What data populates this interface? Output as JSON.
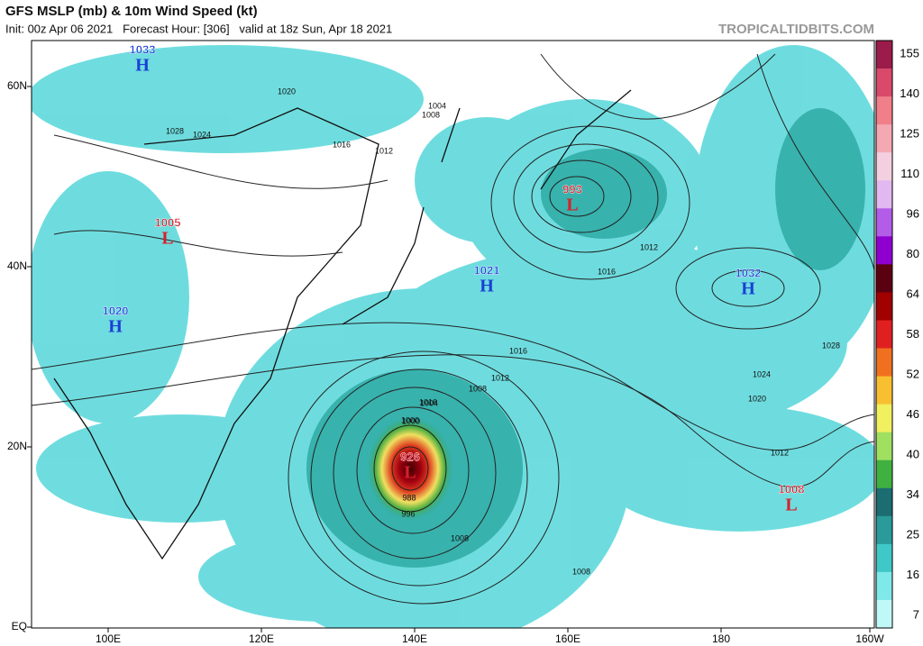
{
  "header": {
    "title": "GFS MSLP (mb) & 10m Wind Speed (kt)",
    "subtitle": "Init: 00z Apr 06 2021   Forecast Hour: [306]   valid at 18z Sun, Apr 18 2021",
    "brand": "TROPICALTIDBITS.COM"
  },
  "map": {
    "lat_labels": [
      "60N",
      "40N",
      "20N",
      "EQ"
    ],
    "lon_labels": [
      "100E",
      "120E",
      "140E",
      "160E",
      "180",
      "160W"
    ],
    "centers": [
      {
        "letter": "H",
        "pressure": "1033"
      },
      {
        "letter": "H",
        "pressure": "1020"
      },
      {
        "letter": "L",
        "pressure": "1005"
      },
      {
        "letter": "H",
        "pressure": "1021"
      },
      {
        "letter": "L",
        "pressure": "993"
      },
      {
        "letter": "H",
        "pressure": "1032"
      },
      {
        "letter": "L",
        "pressure": "926"
      },
      {
        "letter": "L",
        "pressure": "1008"
      }
    ],
    "isobar_labels": [
      "1020",
      "1024",
      "1028",
      "1016",
      "1012",
      "1004",
      "1008",
      "1000",
      "1016",
      "1012",
      "1008",
      "1004",
      "1000",
      "996",
      "988",
      "1016",
      "1020",
      "1024",
      "1028",
      "1012",
      "1008",
      "1008",
      "1012",
      "1016"
    ]
  },
  "colorbar": {
    "labels": [
      "155",
      "140",
      "125",
      "110",
      "96",
      "80",
      "64",
      "58",
      "52",
      "46",
      "40",
      "34",
      "25",
      "16",
      "7"
    ]
  }
}
